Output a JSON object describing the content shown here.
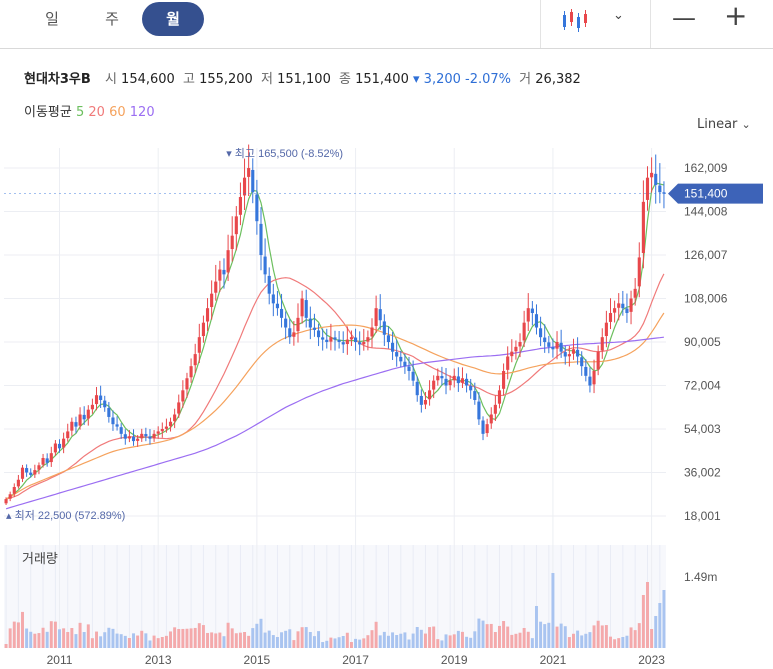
{
  "tabs": [
    {
      "label": "일",
      "active": false
    },
    {
      "label": "주",
      "active": false
    },
    {
      "label": "월",
      "active": true
    }
  ],
  "controls": {
    "chart_type_icon": "candlestick-icon",
    "dropdown_icon": "chevron-down-icon",
    "zoom_out": "—",
    "zoom_in": "+"
  },
  "stock": {
    "name": "현대차3우B",
    "open_label": "시",
    "open": "154,600",
    "high_label": "고",
    "high": "155,200",
    "low_label": "저",
    "low": "151,100",
    "close_label": "종",
    "close": "151,400",
    "change_arrow": "▾",
    "change": "3,200",
    "change_pct": "-2.07%",
    "volume_label": "거",
    "volume": "26,382"
  },
  "moving_average": {
    "label": "이동평균",
    "periods": [
      {
        "value": "5",
        "color": "#6cbf5e"
      },
      {
        "value": "20",
        "color": "#f07a7a"
      },
      {
        "value": "60",
        "color": "#f5a25d"
      },
      {
        "value": "120",
        "color": "#9b6ef2"
      }
    ]
  },
  "scale_mode": "Linear",
  "chart_data": {
    "type": "candlestick",
    "x_tick_labels": [
      "2011",
      "2013",
      "2015",
      "2017",
      "2019",
      "2021",
      "2023"
    ],
    "y_tick_labels": [
      "162,009",
      "144,008",
      "126,007",
      "108,006",
      "90,005",
      "72,004",
      "54,003",
      "36,002",
      "18,001"
    ],
    "y_ticks": [
      162009,
      144008,
      126007,
      108006,
      90005,
      72004,
      54003,
      36002,
      18001
    ],
    "ylim": [
      18001,
      162009
    ],
    "current_price": 151400,
    "current_price_label": "151,400",
    "max_annotation": {
      "text": "최고 165,500 (-8.52%)",
      "value": 165500,
      "date": "2014.07"
    },
    "min_annotation": {
      "text": "최저 22,500 (572.89%)",
      "value": 22500,
      "date": "2009.12"
    },
    "volume_axis_label": "거래량",
    "volume_tick_label": "1.49m",
    "up_color": "#e8474b",
    "down_color": "#3676db",
    "monthly_closes": [
      25000,
      27000,
      30000,
      33000,
      38000,
      36000,
      35000,
      37000,
      39000,
      42000,
      40000,
      44000,
      48000,
      46000,
      50000,
      53000,
      57000,
      55000,
      60000,
      58000,
      62000,
      64000,
      68000,
      66000,
      63000,
      59000,
      56000,
      55000,
      52000,
      50000,
      51000,
      49000,
      50000,
      52000,
      51000,
      50000,
      52000,
      53000,
      54000,
      55000,
      57000,
      60000,
      65000,
      70000,
      75000,
      80000,
      85000,
      92000,
      98000,
      104000,
      110000,
      115000,
      120000,
      118000,
      128000,
      134000,
      142000,
      150000,
      158000,
      162000,
      152000,
      140000,
      126000,
      118000,
      110000,
      106000,
      104000,
      100000,
      96000,
      92000,
      94000,
      100000,
      108000,
      100000,
      96000,
      95000,
      92000,
      91000,
      90000,
      92000,
      91000,
      90000,
      89000,
      91000,
      92000,
      90000,
      89000,
      90000,
      92000,
      96000,
      104000,
      99000,
      93000,
      90000,
      86000,
      84000,
      82000,
      80000,
      78000,
      74000,
      68000,
      64000,
      66000,
      70000,
      74000,
      76000,
      75000,
      72000,
      74000,
      76000,
      73000,
      75000,
      72000,
      70000,
      66000,
      58000,
      52000,
      56000,
      60000,
      64000,
      70000,
      78000,
      84000,
      86000,
      88000,
      90000,
      98000,
      104000,
      102000,
      96000,
      92000,
      90000,
      88000,
      87000,
      90000,
      86000,
      84000,
      85000,
      87000,
      84000,
      80000,
      76000,
      72000,
      78000,
      86000,
      92000,
      98000,
      102000,
      104000,
      106000,
      104000,
      102000,
      108000,
      112000,
      125000,
      148000,
      158000,
      160000,
      155000,
      152000,
      151400
    ],
    "ma_series": [
      {
        "period": "5",
        "values": [
          25000,
          26000,
          27300,
          28800,
          30600,
          32800,
          34200,
          35800,
          37000,
          38800,
          39800,
          41400,
          43000,
          44800,
          46400,
          48200,
          50800,
          52200,
          55000,
          56600,
          58400,
          59800,
          62400,
          64200,
          64400,
          63400,
          61200,
          59800,
          57000,
          54400,
          52800,
          51600,
          50600,
          50400,
          50600,
          50600,
          51200,
          51600,
          52400,
          53400,
          54600,
          56600,
          59400,
          63400,
          67400,
          72000,
          77000,
          82400,
          87600,
          93800,
          99800,
          105800,
          111400,
          113400,
          118200,
          123000,
          128400,
          134400,
          142400,
          149200,
          152800,
          152400,
          147600,
          139600,
          129200,
          120000,
          112800,
          107600,
          103200,
          99600,
          97200,
          97200,
          98000,
          99200,
          98800,
          99800,
          98200,
          94800,
          92800,
          92000,
          91000,
          90800,
          90600,
          90600,
          90600,
          90600,
          90200,
          90400,
          90800,
          91400,
          94200,
          96200,
          96800,
          96400,
          94600,
          90800,
          87000,
          84400,
          82000,
          79600,
          75600,
          71200,
          67600,
          66400,
          68400,
          70000,
          72200,
          73400,
          74200,
          74600,
          74000,
          74000,
          74000,
          73200,
          71200,
          68200,
          63600,
          60400,
          58400,
          58000,
          60400,
          65600,
          71200,
          76400,
          81200,
          85200,
          89200,
          93200,
          96400,
          98000,
          98400,
          96800,
          93600,
          90600,
          89400,
          88200,
          87000,
          86400,
          86400,
          85200,
          84400,
          82400,
          79800,
          78000,
          78400,
          80800,
          85200,
          91200,
          96000,
          100000,
          103400,
          104400,
          104800,
          106400,
          112200,
          123800,
          140200,
          152600,
          155800,
          155400,
          155000
        ]
      },
      {
        "period": "20",
        "values": [
          25000,
          25500,
          26000,
          26700,
          27800,
          28900,
          29900,
          30700,
          31500,
          32200,
          32900,
          33800,
          34600,
          35400,
          36200,
          37300,
          38600,
          39900,
          41400,
          42800,
          44000,
          45100,
          46300,
          47300,
          48100,
          48900,
          49500,
          49900,
          50300,
          50500,
          50700,
          50800,
          50800,
          50800,
          50700,
          50500,
          50300,
          50200,
          50100,
          50000,
          50200,
          50500,
          51000,
          51800,
          52900,
          54400,
          56200,
          58500,
          61100,
          64000,
          67000,
          70200,
          73500,
          76800,
          80500,
          84200,
          88000,
          92000,
          96200,
          100200,
          104100,
          107600,
          110600,
          112600,
          114400,
          115400,
          116000,
          116400,
          116600,
          116400,
          115600,
          114800,
          113800,
          112800,
          111700,
          110400,
          108900,
          107400,
          105900,
          104200,
          102400,
          100300,
          98200,
          95700,
          93100,
          90900,
          89500,
          88600,
          87900,
          87600,
          87500,
          87400,
          87300,
          87100,
          86800,
          86400,
          85900,
          85300,
          84700,
          84000,
          82900,
          81900,
          80900,
          80000,
          79100,
          78300,
          77500,
          76600,
          75800,
          74900,
          74000,
          73200,
          72500,
          71900,
          71500,
          70900,
          70000,
          69100,
          68400,
          67900,
          67800,
          68000,
          68600,
          69400,
          70400,
          71600,
          72900,
          74300,
          75800,
          77400,
          78900,
          80200,
          81400,
          82700,
          84100,
          85300,
          86400,
          87200,
          87600,
          87600,
          87400,
          87000,
          86500,
          86100,
          86000,
          86100,
          86400,
          86800,
          87600,
          88400,
          89300,
          90200,
          91200,
          92600,
          94600,
          97600,
          101700,
          106300,
          110600,
          114800,
          118200
        ]
      },
      {
        "period": "60",
        "values": [
          25000,
          26000,
          27000,
          28000,
          29000,
          30000,
          30800,
          31500,
          32200,
          32900,
          33600,
          34300,
          35000,
          35700,
          36400,
          37100,
          37800,
          38500,
          39200,
          39900,
          40600,
          41300,
          42000,
          42700,
          43400,
          44100,
          44700,
          45200,
          45600,
          46000,
          46300,
          46600,
          46900,
          47200,
          47500,
          47800,
          48100,
          48400,
          48800,
          49200,
          49700,
          50300,
          51000,
          51800,
          52700,
          53700,
          54800,
          56000,
          57300,
          58700,
          60200,
          61800,
          63500,
          65300,
          67300,
          69300,
          71400,
          73600,
          75900,
          78200,
          80400,
          82500,
          84400,
          86100,
          87600,
          88900,
          90000,
          91000,
          91800,
          92500,
          93100,
          93700,
          94200,
          94700,
          95100,
          95500,
          95800,
          96100,
          96300,
          96500,
          96700,
          96800,
          96900,
          97000,
          97000,
          96900,
          96700,
          96400,
          96000,
          95500,
          95000,
          94400,
          93800,
          93200,
          92600,
          92000,
          91300,
          90600,
          89900,
          89200,
          88400,
          87600,
          86800,
          86000,
          85200,
          84500,
          83800,
          83100,
          82500,
          81900,
          81300,
          80700,
          80200,
          79700,
          79200,
          78600,
          78000,
          77500,
          77100,
          76900,
          76800,
          76900,
          77100,
          77400,
          77800,
          78200,
          78700,
          79200,
          79600,
          80000,
          80400,
          80700,
          80900,
          81100,
          81300,
          81400,
          81500,
          81600,
          81700,
          81800,
          81800,
          81800,
          81800,
          81800,
          81900,
          82000,
          82200,
          82500,
          82900,
          83400,
          84000,
          84700,
          85600,
          86700,
          88000,
          89600,
          91600,
          94000,
          96600,
          99400,
          102000
        ]
      },
      {
        "period": "120",
        "values": [
          21000,
          21500,
          22000,
          22500,
          23000,
          23500,
          24000,
          24500,
          25000,
          25500,
          26000,
          26500,
          27000,
          27500,
          28000,
          28500,
          29000,
          29500,
          30000,
          30500,
          31000,
          31500,
          32000,
          32500,
          33000,
          33500,
          34000,
          34500,
          35000,
          35500,
          36000,
          36500,
          37000,
          37500,
          38000,
          38500,
          39000,
          39500,
          40000,
          40500,
          41000,
          41500,
          42000,
          42500,
          43000,
          43500,
          44000,
          44600,
          45200,
          45800,
          46500,
          47200,
          48000,
          48800,
          49600,
          50400,
          51200,
          52100,
          53000,
          54000,
          55000,
          56000,
          57000,
          58000,
          59000,
          60000,
          61000,
          62000,
          63000,
          63800,
          64600,
          65400,
          66200,
          67000,
          67700,
          68400,
          69100,
          69800,
          70400,
          71000,
          71600,
          72200,
          72800,
          73300,
          73800,
          74300,
          74800,
          75300,
          75800,
          76300,
          76800,
          77300,
          77800,
          78300,
          78800,
          79200,
          79600,
          80000,
          80300,
          80600,
          80900,
          81200,
          81500,
          81700,
          81900,
          82100,
          82300,
          82500,
          82700,
          82900,
          83100,
          83300,
          83500,
          83700,
          83900,
          84000,
          84100,
          84200,
          84300,
          84400,
          84600,
          84800,
          85000,
          85200,
          85500,
          85800,
          86100,
          86400,
          86700,
          87000,
          87300,
          87500,
          87700,
          87900,
          88100,
          88300,
          88500,
          88700,
          88900,
          89000,
          89100,
          89200,
          89300,
          89400,
          89500,
          89600,
          89700,
          89800,
          89900,
          90000,
          90100,
          90200,
          90400,
          90600,
          90800,
          91000,
          91200,
          91400,
          91600,
          91800,
          92000
        ]
      }
    ],
    "volume_max_label": "1.49m"
  }
}
